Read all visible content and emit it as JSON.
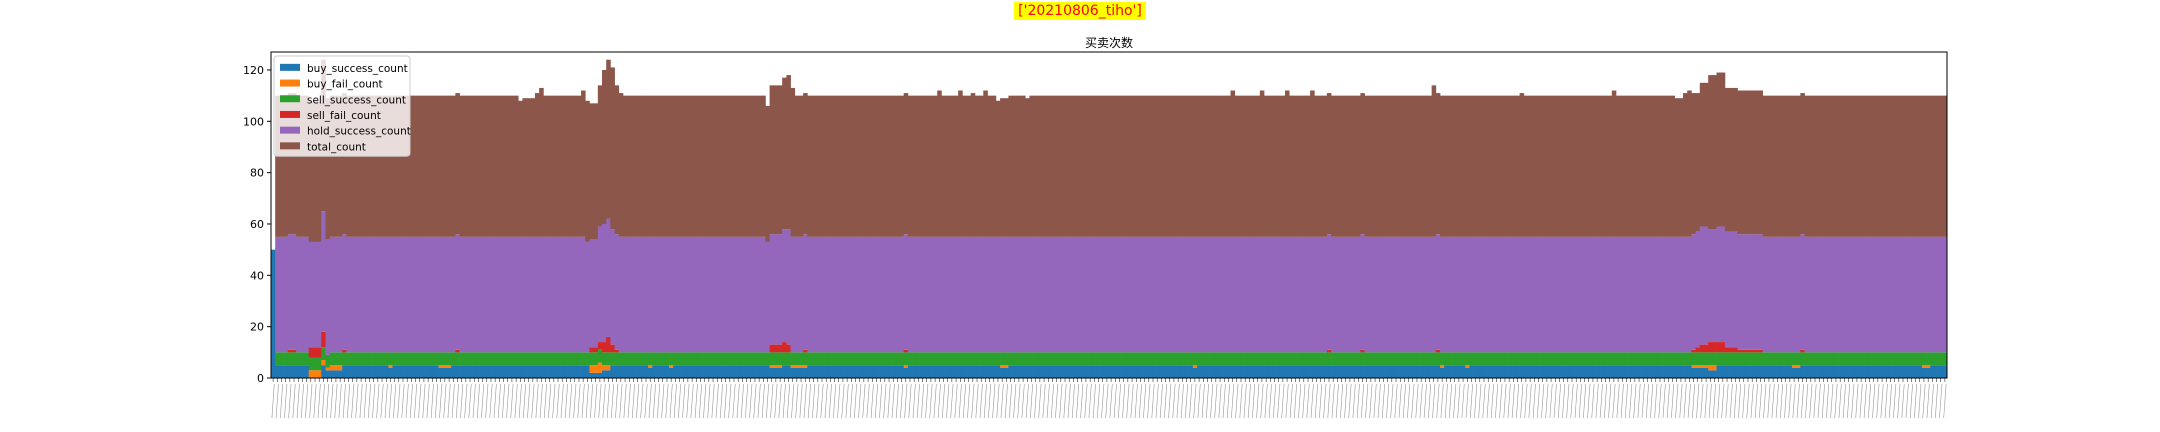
{
  "badge": "['20210806_tiho']",
  "title": "买卖次数",
  "colors": {
    "buy_success_count": "#1f77b4",
    "buy_fail_count": "#ff7f0e",
    "sell_success_count": "#2ca02c",
    "sell_fail_count": "#d62728",
    "hold_success_count": "#9467bd",
    "total_count": "#8c564b"
  },
  "chart_data": {
    "type": "bar",
    "stacked": true,
    "ylim": [
      0,
      127
    ],
    "yticks": [
      0,
      20,
      40,
      60,
      80,
      100,
      120
    ],
    "legend_position": "top-left",
    "legend": [
      "buy_success_count",
      "buy_fail_count",
      "sell_success_count",
      "sell_fail_count",
      "hold_success_count",
      "total_count"
    ],
    "n_categories": 400,
    "baseline": {
      "buy_success_count": 5,
      "buy_fail_count": 0,
      "sell_success_count": 5,
      "sell_fail_count": 0,
      "hold_success_count": 45,
      "total_count": 55
    },
    "first_bar": {
      "buy_success_count": 50,
      "buy_fail_count": 0,
      "sell_success_count": 0,
      "sell_fail_count": 0,
      "hold_success_count": 0,
      "total_count": 0
    },
    "variations": [
      {
        "from": 4,
        "to": 4,
        "sell_fail_count": 1
      },
      {
        "from": 5,
        "to": 5,
        "sell_fail_count": 1
      },
      {
        "from": 9,
        "to": 11,
        "buy_fail_count": 3,
        "buy_success_count": 0,
        "sell_fail_count": 4,
        "hold_success_count": 41
      },
      {
        "from": 12,
        "to": 12,
        "buy_fail_count": 2,
        "sell_fail_count": 6,
        "hold_success_count": 47,
        "total_count": 59
      },
      {
        "from": 13,
        "to": 13,
        "buy_fail_count": 1,
        "buy_success_count": 3
      },
      {
        "from": 14,
        "to": 16,
        "buy_fail_count": 2,
        "buy_success_count": 3
      },
      {
        "from": 17,
        "to": 17,
        "sell_fail_count": 1
      },
      {
        "from": 28,
        "to": 28,
        "buy_fail_count": 1,
        "buy_success_count": 4
      },
      {
        "from": 40,
        "to": 42,
        "buy_fail_count": 1,
        "buy_success_count": 4
      },
      {
        "from": 44,
        "to": 44,
        "sell_fail_count": 1
      },
      {
        "from": 60,
        "to": 62,
        "total_count": 54
      },
      {
        "from": 59,
        "to": 59,
        "total_count": 53
      },
      {
        "from": 63,
        "to": 63,
        "total_count": 56
      },
      {
        "from": 64,
        "to": 64,
        "total_count": 58
      },
      {
        "from": 65,
        "to": 65,
        "total_count": 55
      },
      {
        "from": 74,
        "to": 74,
        "total_count": 57
      },
      {
        "from": 75,
        "to": 75,
        "total_count": 55,
        "hold_success_count": 43
      },
      {
        "from": 76,
        "to": 77,
        "buy_fail_count": 3,
        "buy_success_count": 2,
        "hold_success_count": 42,
        "sell_fail_count": 2,
        "total_count": 53
      },
      {
        "from": 78,
        "to": 78,
        "buy_fail_count": 4,
        "buy_success_count": 2,
        "sell_fail_count": 3,
        "hold_success_count": 45,
        "total_count": 55
      },
      {
        "from": 79,
        "to": 79,
        "buy_fail_count": 2,
        "buy_success_count": 3,
        "sell_fail_count": 4,
        "hold_success_count": 46,
        "total_count": 60
      },
      {
        "from": 80,
        "to": 80,
        "buy_fail_count": 2,
        "buy_success_count": 3,
        "sell_fail_count": 6,
        "hold_success_count": 46,
        "total_count": 62
      },
      {
        "from": 81,
        "to": 81,
        "sell_fail_count": 3,
        "hold_success_count": 45,
        "total_count": 63
      },
      {
        "from": 82,
        "to": 82,
        "sell_fail_count": 1,
        "total_count": 58
      },
      {
        "from": 83,
        "to": 83,
        "total_count": 56
      },
      {
        "from": 90,
        "to": 90,
        "buy_fail_count": 1,
        "buy_success_count": 4
      },
      {
        "from": 95,
        "to": 95,
        "buy_fail_count": 1,
        "buy_success_count": 4
      },
      {
        "from": 118,
        "to": 118,
        "total_count": 53,
        "hold_success_count": 43
      },
      {
        "from": 119,
        "to": 121,
        "buy_fail_count": 1,
        "buy_success_count": 4,
        "sell_fail_count": 3,
        "hold_success_count": 43,
        "total_count": 58
      },
      {
        "from": 122,
        "to": 122,
        "sell_fail_count": 4,
        "hold_success_count": 44,
        "total_count": 59
      },
      {
        "from": 123,
        "to": 123,
        "sell_fail_count": 3,
        "total_count": 60
      },
      {
        "from": 124,
        "to": 124,
        "buy_fail_count": 1,
        "buy_success_count": 4,
        "total_count": 58
      },
      {
        "from": 125,
        "to": 126,
        "buy_fail_count": 1,
        "buy_success_count": 4
      },
      {
        "from": 127,
        "to": 127,
        "buy_fail_count": 1,
        "buy_success_count": 4,
        "sell_fail_count": 1
      },
      {
        "from": 151,
        "to": 151,
        "buy_fail_count": 1,
        "buy_success_count": 4,
        "sell_fail_count": 1
      },
      {
        "from": 159,
        "to": 159,
        "total_count": 57
      },
      {
        "from": 160,
        "to": 160,
        "total_count": 55
      },
      {
        "from": 164,
        "to": 164,
        "total_count": 57
      },
      {
        "from": 167,
        "to": 167,
        "total_count": 56
      },
      {
        "from": 170,
        "to": 170,
        "total_count": 57
      },
      {
        "from": 173,
        "to": 173,
        "total_count": 53
      },
      {
        "from": 174,
        "to": 175,
        "buy_fail_count": 1,
        "buy_success_count": 4,
        "total_count": 54
      },
      {
        "from": 180,
        "to": 180,
        "total_count": 54
      },
      {
        "from": 220,
        "to": 220,
        "buy_fail_count": 1,
        "buy_success_count": 4
      },
      {
        "from": 229,
        "to": 229,
        "total_count": 57
      },
      {
        "from": 232,
        "to": 232,
        "total_count": 55
      },
      {
        "from": 236,
        "to": 236,
        "total_count": 57
      },
      {
        "from": 242,
        "to": 242,
        "total_count": 57
      },
      {
        "from": 248,
        "to": 248,
        "total_count": 57
      },
      {
        "from": 252,
        "to": 252,
        "sell_fail_count": 1
      },
      {
        "from": 260,
        "to": 260,
        "sell_fail_count": 1
      },
      {
        "from": 277,
        "to": 277,
        "total_count": 59
      },
      {
        "from": 278,
        "to": 278,
        "sell_fail_count": 1
      },
      {
        "from": 279,
        "to": 279,
        "buy_fail_count": 1,
        "buy_success_count": 4
      },
      {
        "from": 285,
        "to": 285,
        "buy_fail_count": 1,
        "buy_success_count": 4
      },
      {
        "from": 298,
        "to": 298,
        "total_count": 56
      },
      {
        "from": 320,
        "to": 320,
        "total_count": 57
      },
      {
        "from": 335,
        "to": 336,
        "total_count": 54
      },
      {
        "from": 337,
        "to": 337,
        "total_count": 56
      },
      {
        "from": 338,
        "to": 338,
        "total_count": 57
      },
      {
        "from": 339,
        "to": 339,
        "buy_fail_count": 1,
        "buy_success_count": 4,
        "sell_fail_count": 1,
        "total_count": 55
      },
      {
        "from": 340,
        "to": 340,
        "buy_fail_count": 1,
        "buy_success_count": 4,
        "sell_fail_count": 2,
        "total_count": 54
      },
      {
        "from": 341,
        "to": 342,
        "buy_fail_count": 1,
        "buy_success_count": 4,
        "sell_fail_count": 3,
        "hold_success_count": 46,
        "total_count": 56
      },
      {
        "from": 343,
        "to": 344,
        "buy_fail_count": 2,
        "buy_success_count": 3,
        "sell_fail_count": 4,
        "hold_success_count": 44,
        "total_count": 60
      },
      {
        "from": 345,
        "to": 346,
        "sell_fail_count": 4,
        "hold_success_count": 45,
        "total_count": 60
      },
      {
        "from": 347,
        "to": 349,
        "sell_fail_count": 2,
        "hold_success_count": 45,
        "total_count": 56
      },
      {
        "from": 350,
        "to": 355,
        "sell_fail_count": 1,
        "hold_success_count": 45,
        "total_count": 56
      },
      {
        "from": 356,
        "to": 356,
        "total_count": 55
      },
      {
        "from": 363,
        "to": 363,
        "buy_fail_count": 1,
        "buy_success_count": 4
      },
      {
        "from": 364,
        "to": 364,
        "buy_fail_count": 1,
        "buy_success_count": 4
      },
      {
        "from": 365,
        "to": 365,
        "sell_fail_count": 1
      },
      {
        "from": 394,
        "to": 395,
        "buy_fail_count": 1,
        "buy_success_count": 4
      }
    ]
  }
}
